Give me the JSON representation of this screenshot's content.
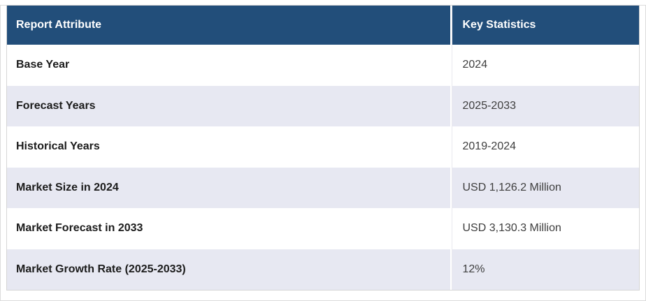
{
  "table": {
    "columns": [
      {
        "label": "Report Attribute"
      },
      {
        "label": "Key Statistics"
      }
    ],
    "rows": [
      {
        "attribute": "Base Year",
        "value": "2024"
      },
      {
        "attribute": "Forecast Years",
        "value": "2025-2033"
      },
      {
        "attribute": "Historical Years",
        "value": "2019-2024"
      },
      {
        "attribute": "Market Size in 2024",
        "value": "USD 1,126.2 Million"
      },
      {
        "attribute": "Market Forecast in 2033",
        "value": "USD 3,130.3 Million"
      },
      {
        "attribute": "Market Growth Rate (2025-2033)",
        "value": "12%"
      }
    ]
  },
  "colors": {
    "header_bg": "#224E7A",
    "alt_row_bg": "#E7E8F2",
    "table_border": "#D6D6D6",
    "header_text": "#FFFFFF",
    "attr_text": "#1C1C1C",
    "value_text": "#3E3E3E"
  },
  "chart_data": {
    "type": "table",
    "title": "",
    "columns": [
      "Report Attribute",
      "Key Statistics"
    ],
    "rows": [
      [
        "Base Year",
        "2024"
      ],
      [
        "Forecast Years",
        "2025-2033"
      ],
      [
        "Historical Years",
        "2019-2024"
      ],
      [
        "Market Size in 2024",
        "USD 1,126.2 Million"
      ],
      [
        "Market Forecast in 2033",
        "USD 3,130.3 Million"
      ],
      [
        "Market Growth Rate (2025-2033)",
        "12%"
      ]
    ]
  }
}
